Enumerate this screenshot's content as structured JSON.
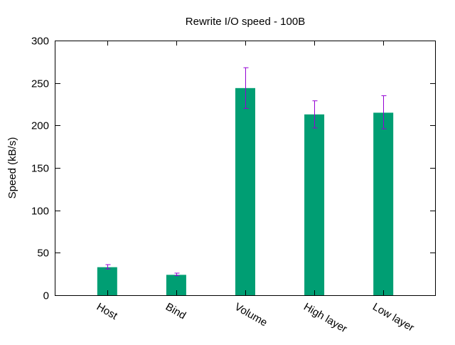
{
  "chart_data": {
    "type": "bar",
    "title": "Rewrite I/O speed - 100B",
    "xlabel": "",
    "ylabel": "Speed (kB/s)",
    "ylim": [
      0,
      300
    ],
    "yticks": [
      0,
      50,
      100,
      150,
      200,
      250,
      300
    ],
    "categories": [
      "Host",
      "Bind",
      "Volume",
      "High layer",
      "Low layer"
    ],
    "values": [
      33,
      24,
      244,
      213,
      215
    ],
    "error_low": [
      31,
      23,
      220,
      197,
      196
    ],
    "error_high": [
      36,
      26,
      268,
      229,
      235
    ],
    "bar_color": "#009e73",
    "error_color": "#9400d3",
    "grid": false,
    "legend": "none"
  }
}
